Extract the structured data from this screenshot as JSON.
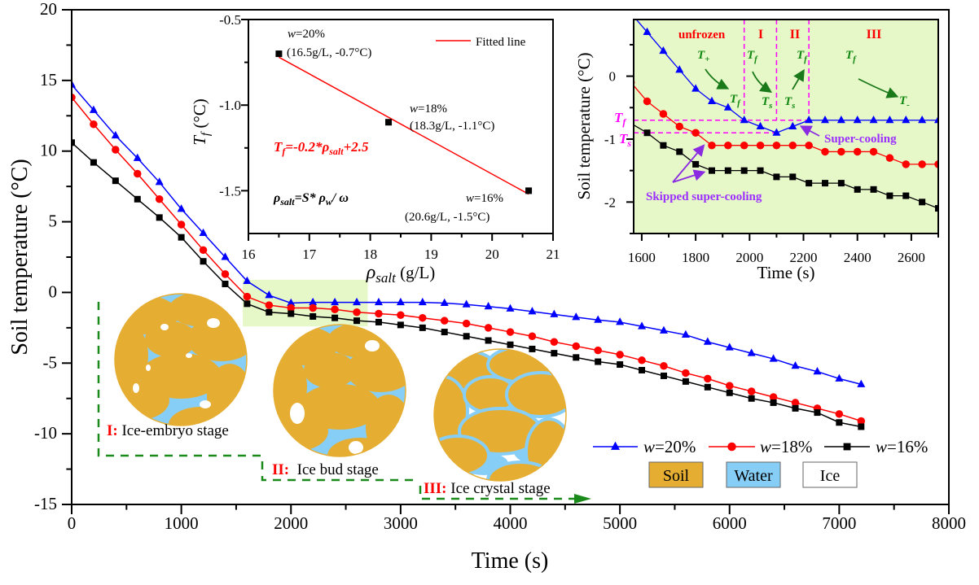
{
  "colors": {
    "w20": "#0000ff",
    "w18": "#ff0000",
    "w16": "#000000",
    "soil": "#e5ae33",
    "water": "#87cef7",
    "ice": "#ffffff",
    "highlight": "#e6f7c8",
    "stage_line": "#1a8a1a",
    "guide": "#ff00ff",
    "note": "#9b30ff"
  },
  "chart_data": [
    {
      "id": "main",
      "type": "line",
      "xlabel": "Time (s)",
      "ylabel": "Soil temperature (°C)",
      "xlim": [
        0,
        8000
      ],
      "ylim": [
        -15,
        20
      ],
      "xticks": [
        0,
        1000,
        2000,
        3000,
        4000,
        5000,
        6000,
        7000,
        8000
      ],
      "yticks": [
        20,
        15,
        10,
        5,
        0,
        -5,
        -10,
        -15
      ],
      "grid": false,
      "legend": "bottom-right",
      "highlight_region": {
        "x": [
          1560,
          2700
        ],
        "y": [
          -2.4,
          0.9
        ]
      },
      "x": [
        0,
        200,
        400,
        600,
        800,
        1000,
        1200,
        1400,
        1600,
        1800,
        2000,
        2200,
        2400,
        2600,
        2800,
        3000,
        3200,
        3400,
        3600,
        3800,
        4000,
        4200,
        4400,
        4600,
        4800,
        5000,
        5200,
        5400,
        5600,
        5800,
        6000,
        6200,
        6400,
        6600,
        6800,
        7000,
        7200
      ],
      "series": [
        {
          "name": "w=20%",
          "marker": "triangle",
          "values": [
            14.7,
            12.9,
            11.1,
            9.5,
            7.8,
            5.9,
            4.2,
            2.5,
            0.8,
            -0.2,
            -0.75,
            -0.7,
            -0.7,
            -0.7,
            -0.7,
            -0.7,
            -0.7,
            -0.75,
            -0.85,
            -1.0,
            -1.15,
            -1.35,
            -1.55,
            -1.75,
            -1.95,
            -2.1,
            -2.4,
            -2.7,
            -3.0,
            -3.5,
            -3.9,
            -4.3,
            -4.7,
            -5.2,
            -5.6,
            -6.1,
            -6.5
          ]
        },
        {
          "name": "w=18%",
          "marker": "circle",
          "values": [
            13.8,
            11.9,
            10.1,
            8.4,
            6.6,
            4.8,
            3.0,
            1.3,
            -0.3,
            -0.9,
            -1.1,
            -1.1,
            -1.2,
            -1.4,
            -1.5,
            -1.6,
            -1.8,
            -2.0,
            -2.2,
            -2.5,
            -2.8,
            -3.1,
            -3.5,
            -3.8,
            -4.1,
            -4.4,
            -4.8,
            -5.2,
            -5.7,
            -6.1,
            -6.6,
            -7.0,
            -7.4,
            -7.8,
            -8.2,
            -8.6,
            -9.1
          ]
        },
        {
          "name": "w=16%",
          "marker": "square",
          "values": [
            10.6,
            9.2,
            7.9,
            6.6,
            5.3,
            3.9,
            2.2,
            0.6,
            -0.8,
            -1.4,
            -1.5,
            -1.7,
            -1.8,
            -2.0,
            -2.1,
            -2.3,
            -2.5,
            -2.8,
            -3.1,
            -3.4,
            -3.7,
            -4.0,
            -4.3,
            -4.6,
            -4.9,
            -5.1,
            -5.5,
            -5.9,
            -6.3,
            -6.7,
            -7.1,
            -7.5,
            -7.8,
            -8.2,
            -8.5,
            -9.2,
            -9.5
          ]
        }
      ],
      "stages": [
        {
          "num": "I:",
          "text": " Ice-embryo stage"
        },
        {
          "num": "II:",
          "text": "  Ice bud stage"
        },
        {
          "num": "III:",
          "text": " Ice crystal stage"
        }
      ],
      "phase_legend": [
        "Soil",
        "Water",
        "Ice"
      ]
    },
    {
      "id": "inset_tf",
      "type": "scatter",
      "xlabel": {
        "sym": "ρ",
        "sub": "salt",
        "unit": " (g/L)"
      },
      "ylabel": {
        "sym": "T",
        "sub": "f",
        "unit": " (°C)"
      },
      "xlim": [
        16,
        21
      ],
      "ylim": [
        -1.75,
        -0.5
      ],
      "xticks": [
        16,
        17,
        18,
        19,
        20,
        21
      ],
      "yticks": [
        -0.5,
        -1.0,
        -1.5
      ],
      "ytick_labels": [
        "-0.5",
        "-1.0",
        "-1.5"
      ],
      "points": [
        {
          "x": 16.5,
          "y": -0.7,
          "label": "w=20%",
          "coord": "(16.5g/L, -0.7°C)"
        },
        {
          "x": 18.3,
          "y": -1.1,
          "label": "w=18%",
          "coord": "(18.3g/L, -1.1°C)"
        },
        {
          "x": 20.6,
          "y": -1.5,
          "label": "w=16%",
          "coord": "(20.6g/L, -1.5°C)"
        }
      ],
      "fit_line": {
        "name": "Fitted line",
        "from": [
          16.5,
          -0.72
        ],
        "to": [
          20.6,
          -1.52
        ]
      },
      "equation": {
        "a": "T",
        "a_sub": "f",
        "mid": "=-0.2*",
        "b": "ρ",
        "b_sub": "salt",
        "end": "+2.5"
      },
      "definition": {
        "a": "ρ",
        "a_sub": "salt",
        "mid": "=S* ",
        "b": "ρ",
        "b_sub": "w",
        "end": "/ ω"
      },
      "legend": "top-right"
    },
    {
      "id": "inset_zoom",
      "type": "line",
      "xlabel": "Time (s)",
      "ylabel": "Soil temperature (°C)",
      "xlim": [
        1570,
        2700
      ],
      "ylim": [
        -2.5,
        0.9
      ],
      "xticks": [
        1600,
        1800,
        2000,
        2200,
        2400,
        2600
      ],
      "yticks": [
        0,
        -1,
        -2
      ],
      "x": [
        1560,
        1620,
        1680,
        1740,
        1800,
        1860,
        1920,
        1980,
        2040,
        2100,
        2160,
        2220,
        2280,
        2340,
        2400,
        2460,
        2520,
        2580,
        2640,
        2700
      ],
      "series": [
        {
          "name": "w=20%",
          "marker": "triangle",
          "values": [
            1.0,
            0.7,
            0.4,
            0.1,
            -0.2,
            -0.4,
            -0.5,
            -0.7,
            -0.8,
            -0.9,
            -0.8,
            -0.7,
            -0.7,
            -0.7,
            -0.7,
            -0.7,
            -0.7,
            -0.7,
            -0.7,
            -0.7
          ]
        },
        {
          "name": "w=18%",
          "marker": "circle",
          "values": [
            -0.1,
            -0.4,
            -0.6,
            -0.8,
            -0.9,
            -1.1,
            -1.1,
            -1.1,
            -1.1,
            -1.1,
            -1.1,
            -1.1,
            -1.2,
            -1.2,
            -1.2,
            -1.2,
            -1.3,
            -1.4,
            -1.4,
            -1.4
          ]
        },
        {
          "name": "w=16%",
          "marker": "square",
          "values": [
            -0.75,
            -0.9,
            -1.1,
            -1.2,
            -1.4,
            -1.5,
            -1.5,
            -1.5,
            -1.5,
            -1.6,
            -1.6,
            -1.7,
            -1.7,
            -1.7,
            -1.8,
            -1.8,
            -1.9,
            -1.9,
            -2.0,
            -2.1
          ]
        }
      ],
      "phase_dividers": [
        1980,
        2100,
        2220
      ],
      "guide_levels": {
        "Tf": -0.7,
        "Ts": -0.9
      },
      "regions": [
        "unfrozen",
        "I",
        "II",
        "III"
      ],
      "guide_labels": {
        "tf": {
          "t": "T",
          "s": "f"
        },
        "ts": {
          "t": "T",
          "s": "s"
        }
      },
      "stage_symbols": [
        {
          "t": "T",
          "s": "+"
        },
        {
          "t": "T",
          "s": "f"
        },
        {
          "t": "T",
          "s": "f"
        },
        {
          "t": "T",
          "s": "f"
        },
        {
          "t": "T",
          "s": "f"
        },
        {
          "t": "T",
          "s": "s"
        },
        {
          "t": "T",
          "s": "s"
        },
        {
          "t": "T",
          "s": "-"
        }
      ],
      "notes": {
        "supercooling": "Super-cooling",
        "skipped": "Skipped super-cooling"
      }
    }
  ]
}
